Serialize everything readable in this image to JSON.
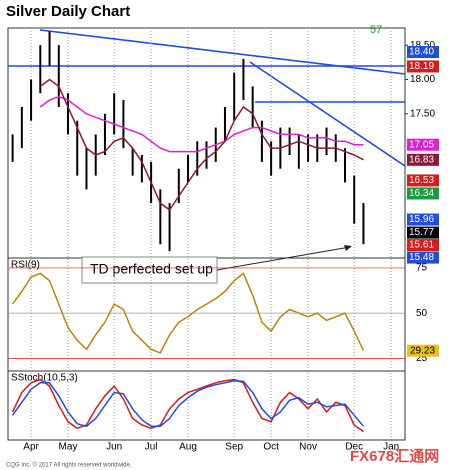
{
  "chart_data": {
    "type": "ohlc",
    "title": "Silver Daily Chart",
    "count_label": "57",
    "annotation": "TD perfected set up",
    "watermark": "FX678汇通网",
    "footer": "CQG Inc. © 2017 All rights reserved worldwide.",
    "categories": [
      null,
      null,
      "Apr",
      null,
      null,
      null,
      "May",
      null,
      null,
      null,
      null,
      "Jun",
      null,
      null,
      null,
      "Jul",
      null,
      null,
      null,
      "Aug",
      null,
      null,
      null,
      null,
      "Sep",
      null,
      null,
      null,
      "Oct",
      null,
      null,
      null,
      "Nov",
      null,
      null,
      null,
      null,
      "Dec",
      null,
      null,
      null,
      "Jan",
      null
    ],
    "grid": true,
    "price": {
      "ylim": [
        15.4,
        18.75
      ],
      "yticks": [
        {
          "value": 17.5,
          "label": "17.50"
        },
        {
          "value": 18,
          "label": "18.00"
        },
        {
          "value": 18.5,
          "label": "18.50"
        }
      ],
      "high": [
        17.2,
        17.6,
        18.0,
        18.5,
        18.7,
        18.5,
        17.8,
        17.4,
        17.0,
        17.2,
        17.5,
        17.8,
        17.7,
        17.0,
        16.9,
        16.8,
        16.4,
        16.2,
        16.7,
        16.9,
        17.1,
        17.1,
        17.3,
        17.6,
        18.1,
        18.3,
        17.9,
        17.4,
        17.1,
        17.3,
        17.3,
        17.2,
        17.2,
        17.2,
        17.3,
        17.2,
        17.0,
        16.6,
        16.2,
        null,
        null,
        null,
        null
      ],
      "low": [
        16.8,
        17.0,
        17.4,
        17.8,
        18.2,
        17.6,
        17.2,
        16.6,
        16.4,
        16.6,
        16.9,
        17.2,
        17.0,
        16.6,
        16.5,
        16.2,
        15.6,
        15.5,
        16.2,
        16.5,
        16.6,
        16.7,
        16.8,
        17.1,
        17.4,
        17.7,
        17.3,
        16.8,
        16.6,
        16.7,
        16.9,
        16.7,
        16.8,
        16.8,
        16.9,
        16.8,
        16.5,
        15.9,
        15.6,
        null,
        null,
        null,
        null
      ],
      "series": [
        {
          "color": "#e020d0",
          "values": [
            null,
            null,
            null,
            17.6,
            17.7,
            17.75,
            17.7,
            17.6,
            17.5,
            17.45,
            17.4,
            17.35,
            17.3,
            17.25,
            17.2,
            17.1,
            17.0,
            16.95,
            16.95,
            16.95,
            16.95,
            17.0,
            17.05,
            17.1,
            17.2,
            17.25,
            17.3,
            17.3,
            17.25,
            17.2,
            17.2,
            17.2,
            17.15,
            17.15,
            17.15,
            17.1,
            17.1,
            17.05,
            17.05,
            null,
            null,
            null,
            null
          ]
        },
        {
          "color": "#8b1a3a",
          "values": [
            null,
            null,
            null,
            17.9,
            18.0,
            17.9,
            17.6,
            17.3,
            17.0,
            16.9,
            16.95,
            17.1,
            17.15,
            17.0,
            16.8,
            16.5,
            16.2,
            16.1,
            16.3,
            16.5,
            16.7,
            16.85,
            16.95,
            17.1,
            17.4,
            17.6,
            17.5,
            17.2,
            17.0,
            17.0,
            17.05,
            17.1,
            17.05,
            17.0,
            17.0,
            17.0,
            16.95,
            16.9,
            16.83,
            null,
            null,
            null,
            null
          ]
        }
      ],
      "bar_color": "#000000",
      "levels": {
        "values": [
          18.4,
          18.19,
          17.05,
          16.83,
          16.53,
          16.34,
          15.96,
          15.77,
          15.61,
          15.48
        ],
        "value_labels": [
          "18.40",
          "18.19",
          "17.05",
          "16.83",
          "16.53",
          "16.34",
          "15.96",
          "15.77",
          "15.61",
          "15.48"
        ],
        "colors": [
          "#1f4fd8",
          "#d81b1b",
          "#e020d0",
          "#8b1a3a",
          "#d81b1b",
          "#1a9a3a",
          "#1f4fd8",
          "#000000",
          "#d81b1b",
          "#1f4fd8"
        ]
      }
    },
    "rsi": {
      "title": "RSI(9)",
      "ylim": [
        18,
        80.5
      ],
      "yticks": [
        25,
        50,
        75
      ],
      "color": "#b8860b",
      "values": [
        55,
        62,
        70,
        72,
        68,
        55,
        42,
        35,
        30,
        38,
        45,
        55,
        52,
        40,
        35,
        30,
        28,
        38,
        45,
        48,
        52,
        55,
        58,
        62,
        68,
        72,
        60,
        45,
        40,
        48,
        52,
        50,
        48,
        50,
        46,
        48,
        50,
        40,
        29.23,
        null,
        null,
        null,
        null
      ],
      "value_labels": [
        null,
        null,
        null,
        null,
        null,
        null,
        null,
        null,
        null,
        null,
        null,
        null,
        null,
        null,
        null,
        null,
        null,
        null,
        null,
        null,
        null,
        null,
        null,
        null,
        null,
        null,
        null,
        null,
        null,
        null,
        null,
        null,
        null,
        null,
        null,
        null,
        null,
        null,
        "29.23",
        null,
        null,
        null,
        null
      ]
    },
    "stoch": {
      "title": "SStoch(10,5,3)",
      "ylim": [
        0,
        100
      ],
      "series": [
        {
          "color": "#d81b1b",
          "values": [
            40,
            70,
            85,
            90,
            80,
            50,
            25,
            15,
            20,
            45,
            65,
            80,
            60,
            30,
            20,
            15,
            20,
            45,
            60,
            70,
            75,
            80,
            85,
            88,
            90,
            85,
            55,
            30,
            25,
            55,
            70,
            60,
            45,
            60,
            40,
            55,
            50,
            20,
            10,
            null,
            null,
            null,
            null
          ]
        },
        {
          "color": "#1f4fd8",
          "values": [
            35,
            55,
            75,
            85,
            85,
            65,
            40,
            22,
            18,
            30,
            50,
            70,
            68,
            45,
            28,
            18,
            18,
            30,
            50,
            62,
            72,
            78,
            82,
            85,
            88,
            87,
            70,
            45,
            30,
            40,
            58,
            62,
            52,
            55,
            48,
            50,
            52,
            35,
            18,
            null,
            null,
            null,
            null
          ]
        }
      ]
    }
  }
}
